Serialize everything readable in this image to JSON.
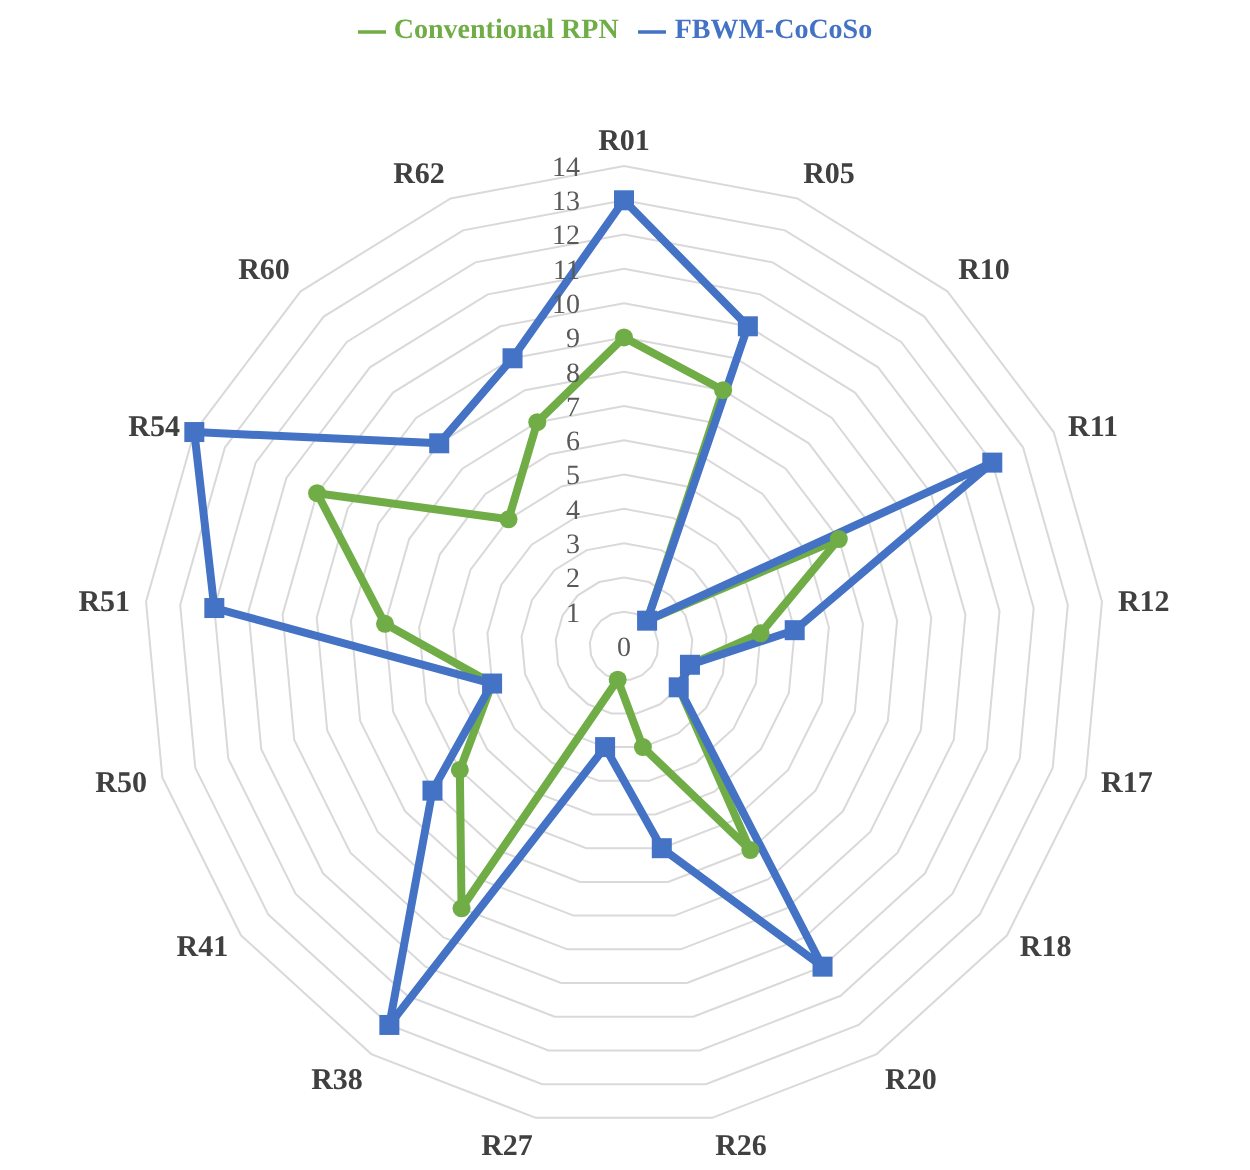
{
  "chart_data": {
    "type": "radar",
    "categories": [
      "R01",
      "R05",
      "R10",
      "R11",
      "R12",
      "R17",
      "R18",
      "R20",
      "R26",
      "R27",
      "R38",
      "R41",
      "R50",
      "R51",
      "R54",
      "R60",
      "R62"
    ],
    "series": [
      {
        "name": "Conventional RPN",
        "color": "#70ad47",
        "marker": "circle",
        "values": [
          9,
          8,
          1,
          7,
          4,
          2,
          2,
          7,
          3,
          1,
          9,
          6,
          4,
          7,
          10,
          5,
          7
        ]
      },
      {
        "name": "FBWM-CoCoSo",
        "color": "#4472c4",
        "marker": "square",
        "values": [
          13,
          10,
          1,
          12,
          5,
          2,
          2,
          11,
          6,
          3,
          13,
          7,
          4,
          12,
          14,
          8,
          9
        ]
      }
    ],
    "ylim": [
      0,
      14
    ],
    "yticks": [
      0,
      1,
      2,
      3,
      4,
      5,
      6,
      7,
      8,
      9,
      10,
      11,
      12,
      13,
      14
    ],
    "grid": true,
    "legend": "top",
    "line_style": "solid"
  }
}
